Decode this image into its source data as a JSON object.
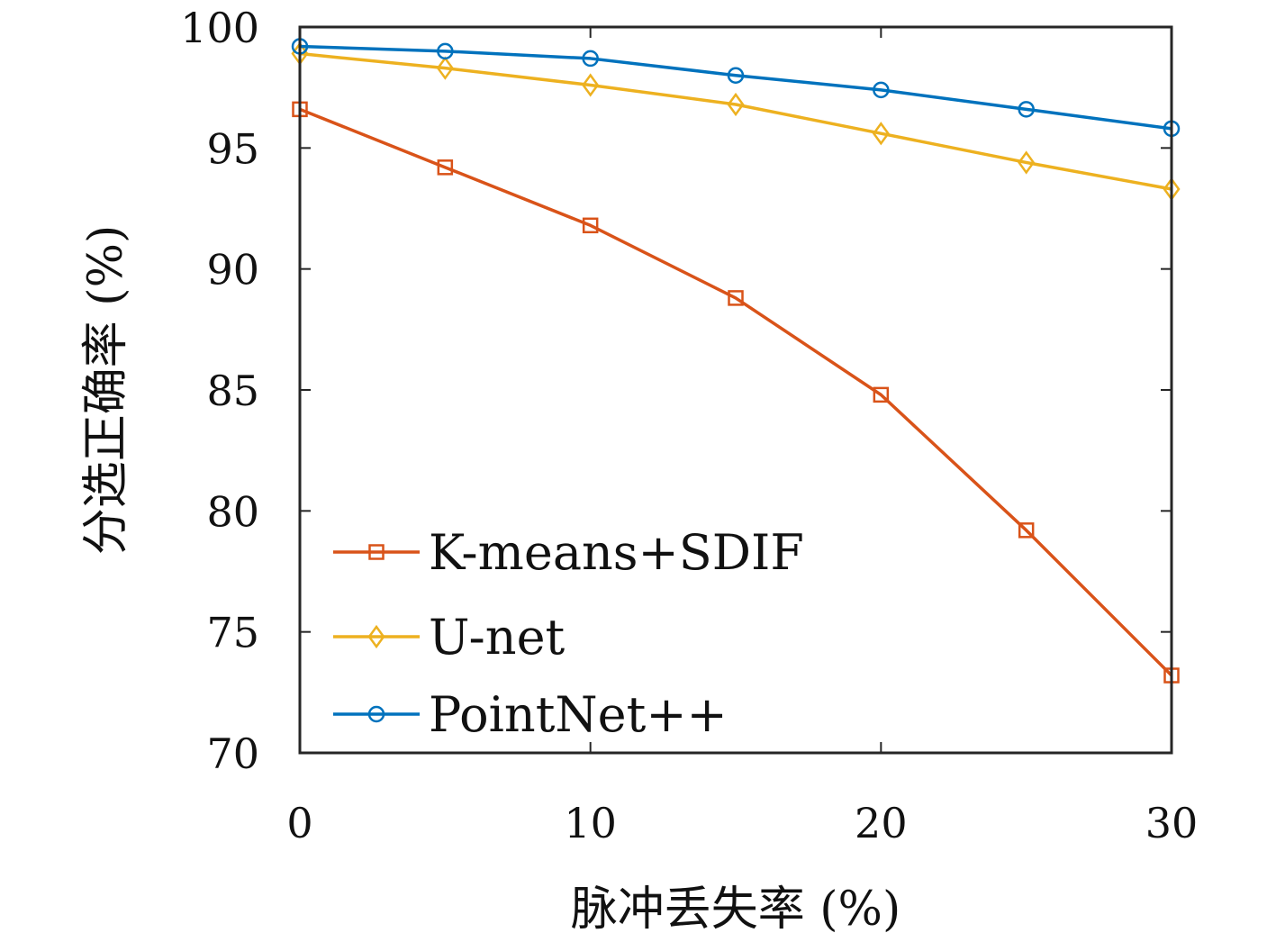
{
  "chart_data": {
    "type": "line",
    "xlabel": "脉冲丢失率 (%)",
    "ylabel": "分选正确率 (%)",
    "xlim": [
      0,
      30
    ],
    "ylim": [
      70,
      100
    ],
    "xticks": [
      0,
      10,
      20,
      30
    ],
    "yticks": [
      70,
      75,
      80,
      85,
      90,
      95,
      100
    ],
    "x": [
      0,
      5,
      10,
      15,
      20,
      25,
      30
    ],
    "legend_position": "bottom-left",
    "grid": false,
    "series": [
      {
        "name": "K-means+SDIF",
        "color": "#d95319",
        "marker": "square",
        "values": [
          96.6,
          94.2,
          91.8,
          88.8,
          84.8,
          79.2,
          73.2
        ]
      },
      {
        "name": "U-net",
        "color": "#edb120",
        "marker": "diamond",
        "values": [
          98.9,
          98.3,
          97.6,
          96.8,
          95.6,
          94.4,
          93.3
        ]
      },
      {
        "name": "PointNet++",
        "color": "#0072bd",
        "marker": "circle",
        "values": [
          99.2,
          99.0,
          98.7,
          98.0,
          97.4,
          96.6,
          95.8
        ]
      }
    ]
  }
}
